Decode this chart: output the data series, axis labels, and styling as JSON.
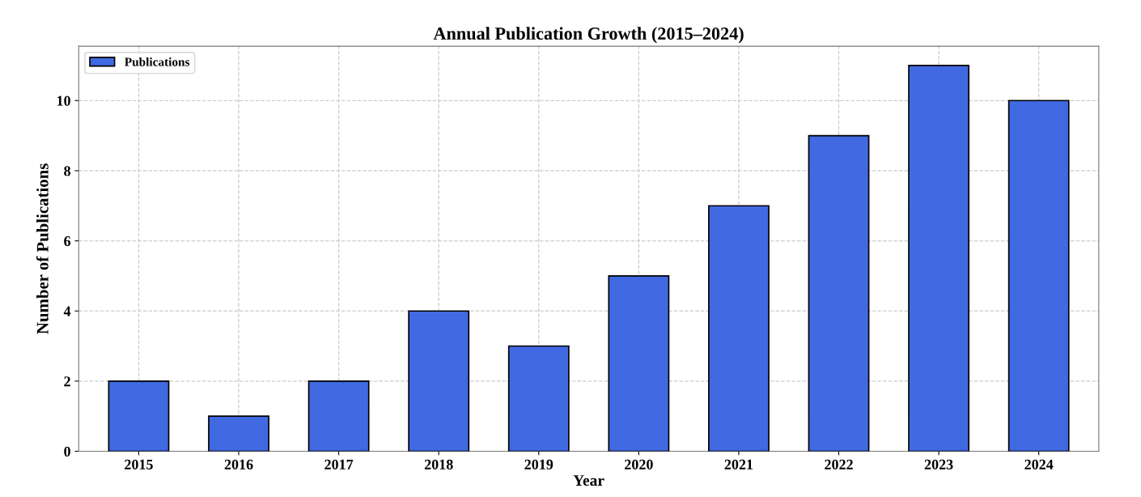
{
  "chart_data": {
    "type": "bar",
    "title": "Annual Publication Growth (2015–2024)",
    "xlabel": "Year",
    "ylabel": "Number of Publications",
    "categories": [
      "2015",
      "2016",
      "2017",
      "2018",
      "2019",
      "2020",
      "2021",
      "2022",
      "2023",
      "2024"
    ],
    "series": [
      {
        "name": "Publications",
        "color": "#4169e1",
        "values": [
          2,
          1,
          2,
          4,
          3,
          5,
          7,
          9,
          11,
          10
        ]
      }
    ],
    "ylim": [
      0,
      11.55
    ],
    "yticks": [
      0,
      2,
      4,
      6,
      8,
      10
    ],
    "grid": true,
    "legend": "top left"
  }
}
